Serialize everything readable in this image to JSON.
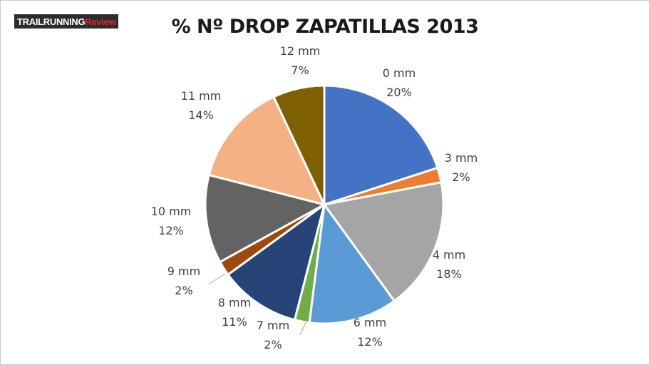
{
  "logo": {
    "part1": "TRAILRUNNING",
    "part2": "Review"
  },
  "chart_data": {
    "type": "pie",
    "title": "% Nº DROP ZAPATILLAS 2013",
    "slices": [
      {
        "label": "0 mm",
        "value": 20,
        "display": "20%",
        "color": "#4472c4"
      },
      {
        "label": "3 mm",
        "value": 2,
        "display": "2%",
        "color": "#ed7d31"
      },
      {
        "label": "4 mm",
        "value": 18,
        "display": "18%",
        "color": "#a5a5a5"
      },
      {
        "label": "6 mm",
        "value": 12,
        "display": "12%",
        "color": "#5b9bd5"
      },
      {
        "label": "7 mm",
        "value": 2,
        "display": "2%",
        "color": "#70ad47"
      },
      {
        "label": "8 mm",
        "value": 11,
        "display": "11%",
        "color": "#264478"
      },
      {
        "label": "9 mm",
        "value": 2,
        "display": "2%",
        "color": "#9e480e"
      },
      {
        "label": "10 mm",
        "value": 12,
        "display": "12%",
        "color": "#636363"
      },
      {
        "label": "11 mm",
        "value": 14,
        "display": "14%",
        "color": "#f4b183"
      },
      {
        "label": "12 mm",
        "value": 7,
        "display": "7%",
        "color": "#7f6000"
      }
    ]
  }
}
